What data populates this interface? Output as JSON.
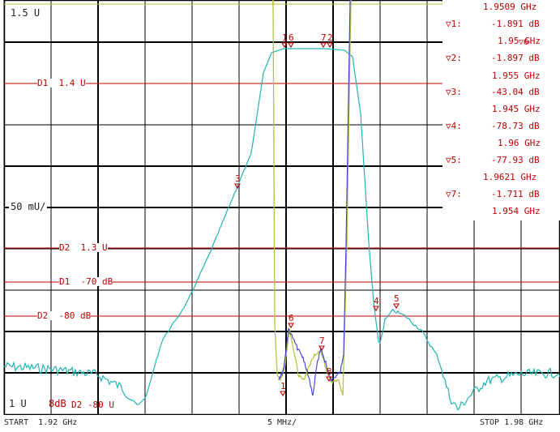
{
  "axis": {
    "top_ref": "1.5 U",
    "mid_ref": "50 mU/",
    "bottom_ref": "1 U",
    "bottom_overlap": "8dB",
    "bottom_overlap2": "D2 -80 U",
    "start": "START  1.92 GHz",
    "span": "5 MHz/",
    "stop": "STOP 1.98 GHz"
  },
  "display_lines": [
    {
      "label": "D1  1.4 U"
    },
    {
      "label": "D2  1.3 U"
    },
    {
      "label": "D1  -70 dB"
    },
    {
      "label": "D2  -80 dB"
    }
  ],
  "markers": [
    {
      "id": "▽1:",
      "value": "-1.891 dB",
      "freq": "1.95 GHz"
    },
    {
      "id": "▽2:",
      "value": "-1.897 dB",
      "freq": "1.955 GHz"
    },
    {
      "id": "▽3:",
      "value": "-43.04 dB",
      "freq": "1.945 GHz"
    },
    {
      "id": "▽4:",
      "value": "-78.73 dB",
      "freq": "1.96 GHz"
    },
    {
      "id": "▽5:",
      "value": "-77.93 dB",
      "freq": "1.9621 GHz"
    },
    {
      "id": "▽7:",
      "value": "-1.711 dB",
      "freq": "1.954 GHz"
    }
  ],
  "marker_list_top_freq": "1.9509 GHz",
  "marker_list_overlap": "▽6",
  "trace_marker_labels": [
    "1",
    "6",
    "7",
    "2",
    "3",
    "4",
    "5",
    "6",
    "7",
    "8",
    "1"
  ],
  "colors": {
    "grid": "#000000",
    "reference_line": "#c00000",
    "trace_cyan": "#21b4b4",
    "trace_yellow": "#b8c23c",
    "trace_blue": "#3c3cdc",
    "marker": "#c00000"
  }
}
